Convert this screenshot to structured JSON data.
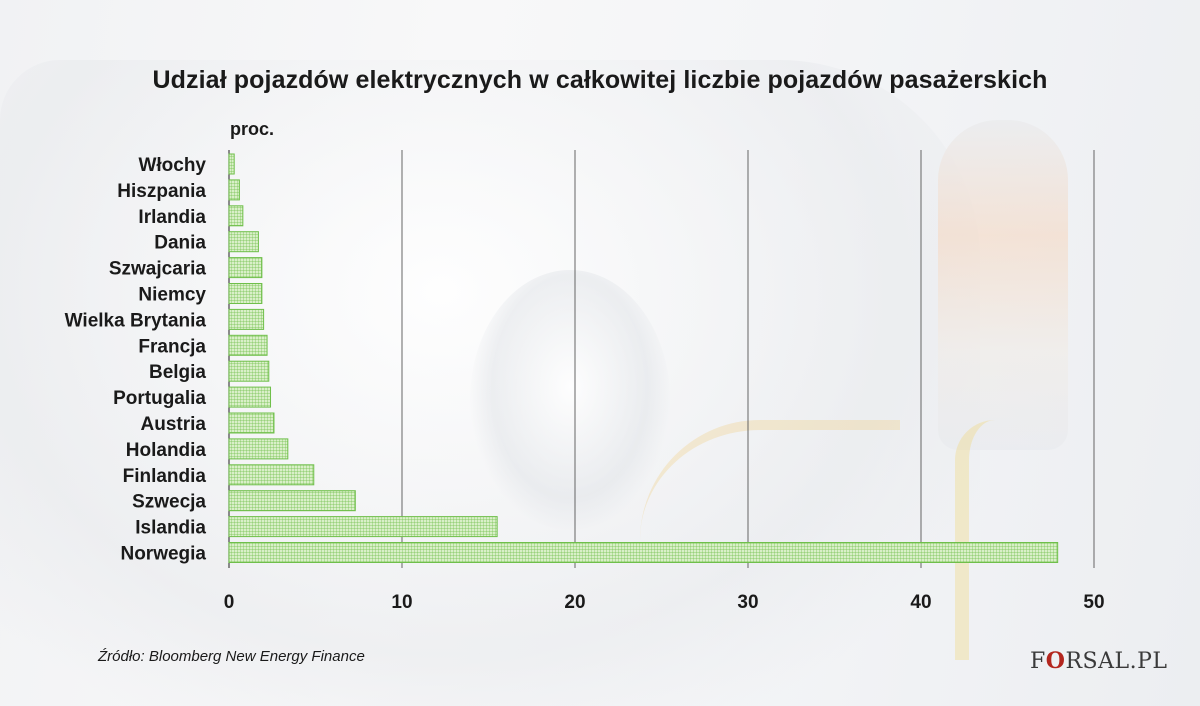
{
  "chart_data": {
    "type": "bar",
    "orientation": "horizontal",
    "title": "Udział pojazdów elektrycznych w całkowitej liczbie pojazdów pasażerskich",
    "unit_label": "proc.",
    "categories": [
      "Włochy",
      "Hiszpania",
      "Irlandia",
      "Dania",
      "Szwajcaria",
      "Niemcy",
      "Wielka Brytania",
      "Francja",
      "Belgia",
      "Portugalia",
      "Austria",
      "Holandia",
      "Finlandia",
      "Szwecja",
      "Islandia",
      "Norwegia"
    ],
    "values": [
      0.3,
      0.6,
      0.8,
      1.7,
      1.9,
      1.9,
      2.0,
      2.2,
      2.3,
      2.4,
      2.6,
      3.4,
      4.9,
      7.3,
      15.5,
      47.9
    ],
    "xlim": [
      0,
      50
    ],
    "xticks": [
      0,
      10,
      20,
      30,
      40,
      50
    ],
    "grid": "vertical",
    "bar_color": "#6fbf4a",
    "bar_fill_color": "#d9efc8"
  },
  "source": "Źródło: Bloomberg New Energy Finance",
  "logo": {
    "prefix": "F",
    "mark": "O",
    "suffix": "RSAL.PL"
  }
}
